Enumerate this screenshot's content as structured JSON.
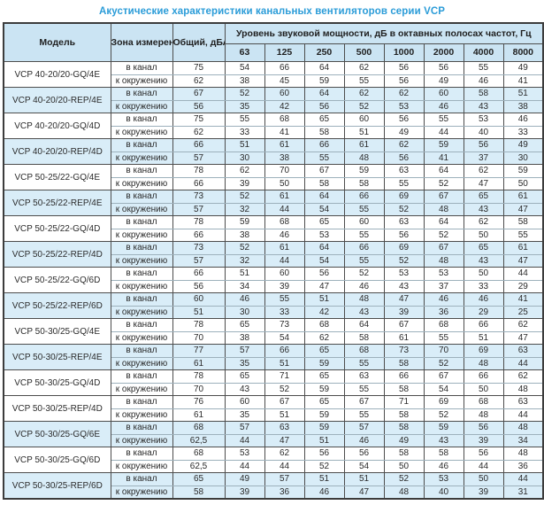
{
  "title": "Акустические характеристики канальных вентиляторов  серии VCP",
  "colors": {
    "accent_blue": "#2b9cd8",
    "header_bg": "#cbe4f3",
    "row_highlight_bg": "#d9edf8",
    "border_dark": "#4d4d4d"
  },
  "table": {
    "headers": {
      "model": "Модель",
      "zone": "Зона измерения",
      "total": "Общий, дБА",
      "freq_band": "Уровень звуковой мощности, дБ в октавных полосах частот, Гц"
    },
    "frequencies": [
      "63",
      "125",
      "250",
      "500",
      "1000",
      "2000",
      "4000",
      "8000"
    ],
    "zone_labels": {
      "duct": "в канал",
      "ambient": "к окружению"
    },
    "rows": [
      {
        "model": "VCP 40-20/20-GQ/4E",
        "highlight": false,
        "duct": {
          "total": 75,
          "levels": [
            54,
            66,
            64,
            62,
            56,
            56,
            55,
            49
          ]
        },
        "ambient": {
          "total": 62,
          "levels": [
            38,
            45,
            59,
            55,
            56,
            49,
            46,
            41
          ]
        }
      },
      {
        "model": "VCP 40-20/20-REP/4E",
        "highlight": true,
        "duct": {
          "total": 67,
          "levels": [
            52,
            60,
            64,
            62,
            62,
            60,
            58,
            51
          ]
        },
        "ambient": {
          "total": 56,
          "levels": [
            35,
            42,
            56,
            52,
            53,
            46,
            43,
            38
          ]
        }
      },
      {
        "model": "VCP 40-20/20-GQ/4D",
        "highlight": false,
        "duct": {
          "total": 75,
          "levels": [
            55,
            68,
            65,
            60,
            56,
            55,
            53,
            46
          ]
        },
        "ambient": {
          "total": 62,
          "levels": [
            33,
            41,
            58,
            51,
            49,
            44,
            40,
            33
          ]
        }
      },
      {
        "model": "VCP 40-20/20-REP/4D",
        "highlight": true,
        "duct": {
          "total": 66,
          "levels": [
            51,
            61,
            66,
            61,
            62,
            59,
            56,
            49
          ]
        },
        "ambient": {
          "total": 57,
          "levels": [
            30,
            38,
            55,
            48,
            56,
            41,
            37,
            30
          ]
        }
      },
      {
        "model": "VCP 50-25/22-GQ/4E",
        "highlight": false,
        "duct": {
          "total": 78,
          "levels": [
            62,
            70,
            67,
            59,
            63,
            64,
            62,
            59
          ]
        },
        "ambient": {
          "total": 66,
          "levels": [
            39,
            50,
            58,
            58,
            55,
            52,
            47,
            50
          ]
        }
      },
      {
        "model": "VCP 50-25/22-REP/4E",
        "highlight": true,
        "duct": {
          "total": 73,
          "levels": [
            52,
            61,
            64,
            66,
            69,
            67,
            65,
            61
          ]
        },
        "ambient": {
          "total": 57,
          "levels": [
            32,
            44,
            54,
            55,
            52,
            48,
            43,
            47
          ]
        }
      },
      {
        "model": "VCP 50-25/22-GQ/4D",
        "highlight": false,
        "duct": {
          "total": 78,
          "levels": [
            59,
            68,
            65,
            60,
            63,
            64,
            62,
            58
          ]
        },
        "ambient": {
          "total": 66,
          "levels": [
            38,
            46,
            53,
            55,
            56,
            52,
            50,
            55
          ]
        }
      },
      {
        "model": "VCP 50-25/22-REP/4D",
        "highlight": true,
        "duct": {
          "total": 73,
          "levels": [
            52,
            61,
            64,
            66,
            69,
            67,
            65,
            61
          ]
        },
        "ambient": {
          "total": 57,
          "levels": [
            32,
            44,
            54,
            55,
            52,
            48,
            43,
            47
          ]
        }
      },
      {
        "model": "VCP 50-25/22-GQ/6D",
        "highlight": false,
        "duct": {
          "total": 66,
          "levels": [
            51,
            60,
            56,
            52,
            53,
            53,
            50,
            44
          ]
        },
        "ambient": {
          "total": 56,
          "levels": [
            34,
            39,
            47,
            46,
            43,
            37,
            33,
            29
          ]
        }
      },
      {
        "model": "VCP 50-25/22-REP/6D",
        "highlight": true,
        "duct": {
          "total": 60,
          "levels": [
            46,
            55,
            51,
            48,
            47,
            46,
            46,
            41
          ]
        },
        "ambient": {
          "total": 51,
          "levels": [
            30,
            33,
            42,
            43,
            39,
            36,
            29,
            25
          ]
        }
      },
      {
        "model": "VCP 50-30/25-GQ/4E",
        "highlight": false,
        "duct": {
          "total": 78,
          "levels": [
            65,
            73,
            68,
            64,
            67,
            68,
            66,
            62
          ]
        },
        "ambient": {
          "total": 70,
          "levels": [
            38,
            54,
            62,
            58,
            61,
            55,
            51,
            47
          ]
        }
      },
      {
        "model": "VCP 50-30/25-REP/4E",
        "highlight": true,
        "duct": {
          "total": 77,
          "levels": [
            57,
            66,
            65,
            68,
            73,
            70,
            69,
            63
          ]
        },
        "ambient": {
          "total": 61,
          "levels": [
            35,
            51,
            59,
            55,
            58,
            52,
            48,
            44
          ]
        }
      },
      {
        "model": "VCP 50-30/25-GQ/4D",
        "highlight": false,
        "duct": {
          "total": 78,
          "levels": [
            65,
            71,
            65,
            63,
            66,
            67,
            66,
            62
          ]
        },
        "ambient": {
          "total": 70,
          "levels": [
            43,
            52,
            59,
            55,
            58,
            54,
            50,
            48
          ]
        }
      },
      {
        "model": "VCP 50-30/25-REP/4D",
        "highlight": false,
        "duct": {
          "total": 76,
          "levels": [
            60,
            67,
            65,
            67,
            71,
            69,
            68,
            63
          ]
        },
        "ambient": {
          "total": 61,
          "levels": [
            35,
            51,
            59,
            55,
            58,
            52,
            48,
            44
          ]
        }
      },
      {
        "model": "VCP 50-30/25-GQ/6E",
        "highlight": true,
        "duct": {
          "total": 68,
          "levels": [
            57,
            63,
            59,
            57,
            58,
            59,
            56,
            48
          ]
        },
        "ambient": {
          "total": "62,5",
          "levels": [
            44,
            47,
            51,
            46,
            49,
            43,
            39,
            34
          ]
        }
      },
      {
        "model": "VCP 50-30/25-GQ/6D",
        "highlight": false,
        "duct": {
          "total": 68,
          "levels": [
            53,
            62,
            56,
            56,
            58,
            58,
            56,
            48
          ]
        },
        "ambient": {
          "total": "62,5",
          "levels": [
            44,
            44,
            52,
            54,
            50,
            46,
            44,
            36
          ]
        }
      },
      {
        "model": "VCP 50-30/25-REP/6D",
        "highlight": true,
        "duct": {
          "total": 65,
          "levels": [
            49,
            57,
            51,
            51,
            52,
            53,
            50,
            44
          ]
        },
        "ambient": {
          "total": 58,
          "levels": [
            39,
            36,
            46,
            47,
            48,
            40,
            39,
            31
          ]
        }
      }
    ]
  }
}
